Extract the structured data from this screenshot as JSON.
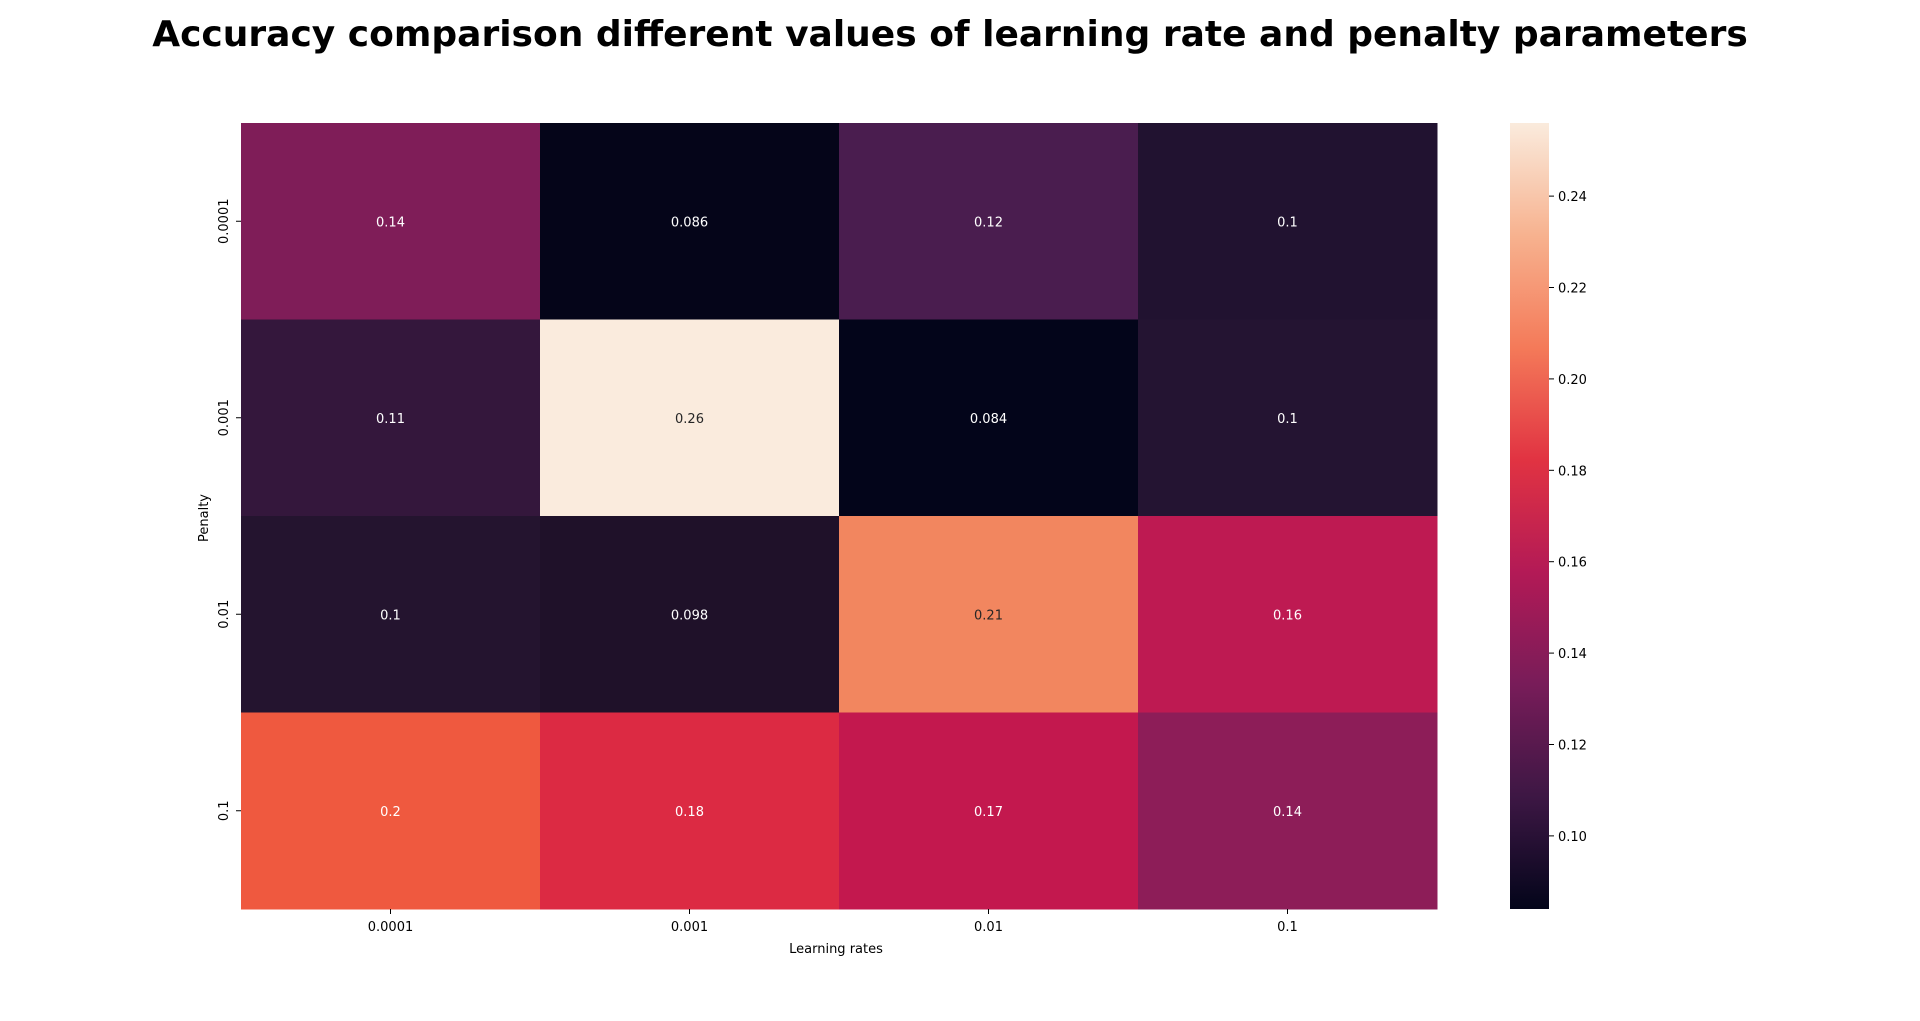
{
  "chart_data": {
    "type": "heatmap",
    "title": "Accuracy comparison different values of learning rate and penalty parameters",
    "xlabel": "Learning rates",
    "ylabel": "Penalty",
    "x_categories": [
      "0.0001",
      "0.001",
      "0.01",
      "0.1"
    ],
    "y_categories": [
      "0.0001",
      "0.001",
      "0.01",
      "0.1"
    ],
    "values": [
      [
        0.14,
        0.086,
        0.12,
        0.1
      ],
      [
        0.11,
        0.26,
        0.084,
        0.1
      ],
      [
        0.1,
        0.098,
        0.21,
        0.16
      ],
      [
        0.2,
        0.18,
        0.17,
        0.14
      ]
    ],
    "cell_labels": [
      [
        "0.14",
        "0.086",
        "0.12",
        "0.1"
      ],
      [
        "0.11",
        "0.26",
        "0.084",
        "0.1"
      ],
      [
        "0.1",
        "0.098",
        "0.21",
        "0.16"
      ],
      [
        "0.2",
        "0.18",
        "0.17",
        "0.14"
      ]
    ],
    "cell_colors": [
      [
        "#7f1d58",
        "#050519",
        "#4a1d4f",
        "#211230"
      ],
      [
        "#34173c",
        "#faebdd",
        "#03051a",
        "#241432"
      ],
      [
        "#24142f",
        "#1f1129",
        "#f2865f",
        "#be1a52"
      ],
      [
        "#ef593f",
        "#dc2a43",
        "#c3184e",
        "#8d1d58"
      ]
    ],
    "colorbar": {
      "range": [
        0.084,
        0.256
      ],
      "ticks": [
        0.1,
        0.12,
        0.14,
        0.16,
        0.18,
        0.2,
        0.22,
        0.24
      ],
      "tick_labels": [
        "0.10",
        "0.12",
        "0.14",
        "0.16",
        "0.18",
        "0.20",
        "0.22",
        "0.24"
      ],
      "colormap": "rocket",
      "stops": [
        "#03051a",
        "#3d1744",
        "#781c59",
        "#b31a56",
        "#e13342",
        "#f47a59",
        "#f7b28f",
        "#faebdd"
      ]
    },
    "grid": false,
    "legend": "colorbar-right"
  }
}
